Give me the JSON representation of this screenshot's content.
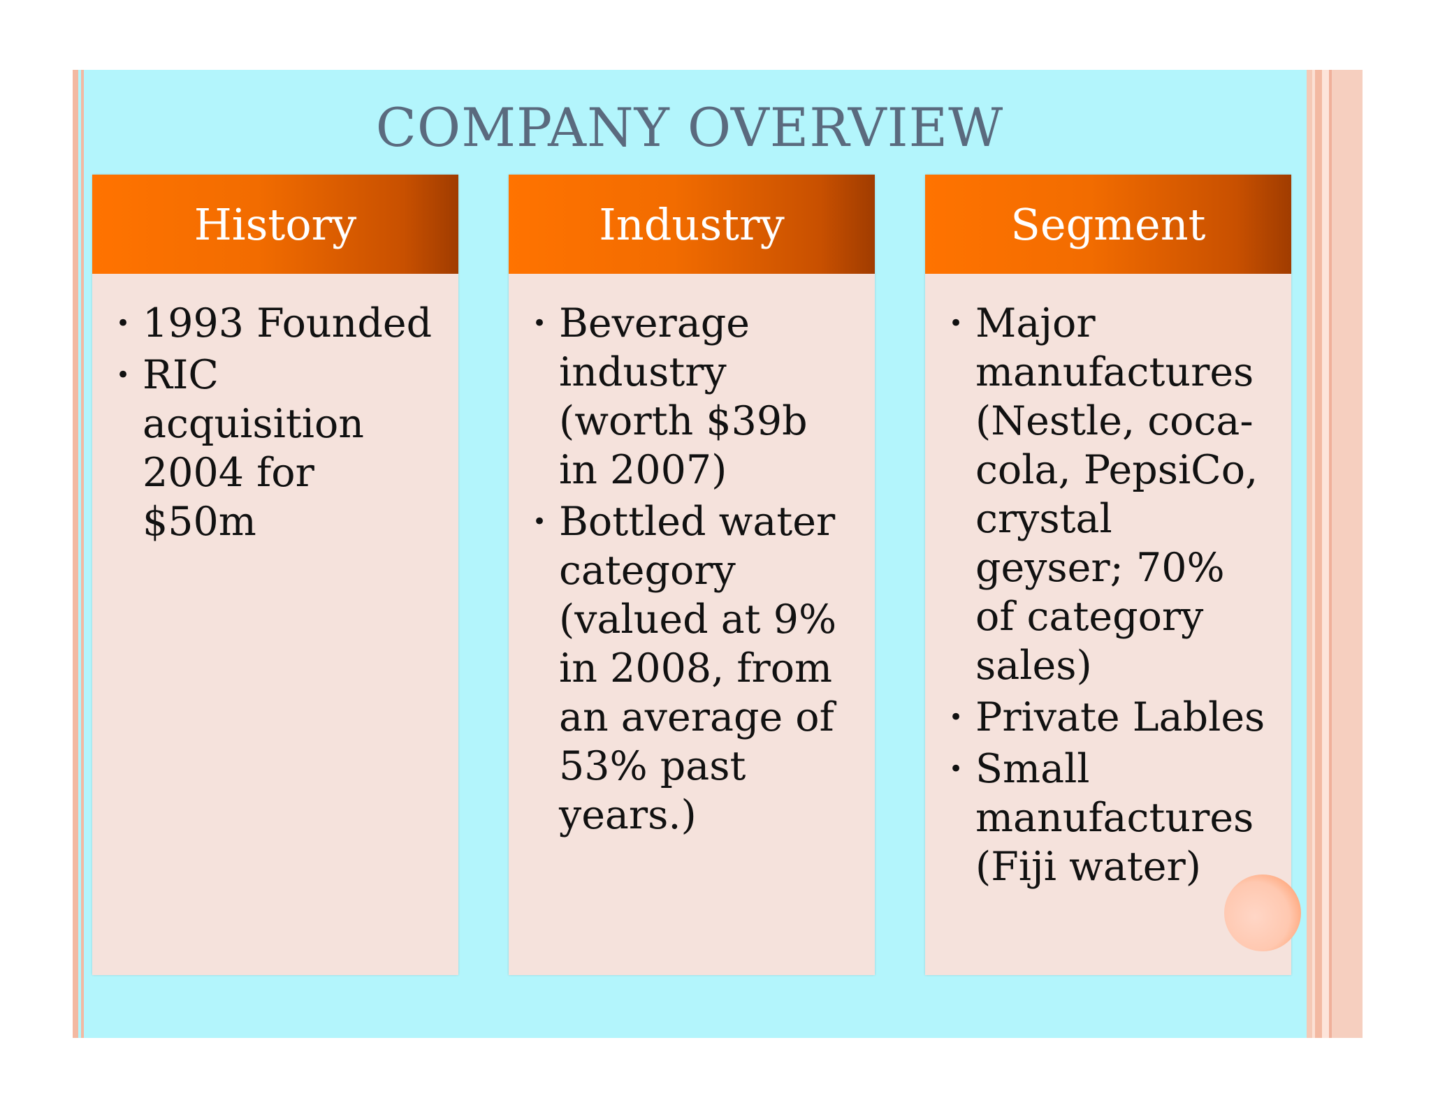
{
  "slide": {
    "title": "COMPANY OVERVIEW",
    "columns": [
      {
        "header": "History",
        "bullets": [
          "1993 Founded",
          "RIC acquisition 2004 for $50m"
        ]
      },
      {
        "header": "Industry",
        "bullets": [
          "Beverage industry (worth $39b in 2007)",
          "Bottled water category (valued at 9% in 2008, from an average of 53% past years.)"
        ]
      },
      {
        "header": "Segment",
        "bullets": [
          "Major manufactures (Nestle, coca-cola, PepsiCo, crystal geyser; 70% of category sales)",
          "Private Lables",
          "Small manufactures (Fiji water)"
        ]
      }
    ],
    "bullet_glyph": "•"
  },
  "colors": {
    "background": "#b3f5fc",
    "title": "#5a6a7e",
    "header_start": "#ff7300",
    "header_end": "#a03c00",
    "card_body": "#f5e2dc",
    "stripe": "#f3b9a2"
  }
}
